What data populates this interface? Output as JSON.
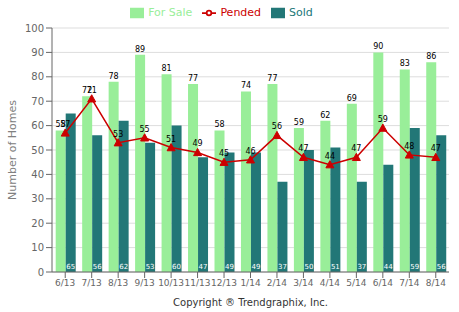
{
  "chart_data": {
    "type": "bar",
    "categories": [
      "6/13",
      "7/13",
      "8/13",
      "9/13",
      "10/13",
      "11/13",
      "12/13",
      "1/14",
      "2/14",
      "3/14",
      "4/14",
      "5/14",
      "6/14",
      "7/14",
      "8/14"
    ],
    "series": [
      {
        "name": "For Sale",
        "color": "#99ee99",
        "values": [
          58,
          72,
          78,
          89,
          81,
          77,
          58,
          74,
          77,
          59,
          62,
          69,
          90,
          83,
          86
        ]
      },
      {
        "name": "Sold",
        "color": "#227777",
        "values": [
          65,
          56,
          62,
          53,
          60,
          47,
          49,
          49,
          37,
          50,
          51,
          37,
          44,
          59,
          56
        ]
      },
      {
        "name": "Pended",
        "type": "line",
        "color": "#cc0000",
        "marker": "triangle",
        "values": [
          57,
          71,
          53,
          55,
          51,
          49,
          45,
          46,
          56,
          47,
          44,
          47,
          59,
          48,
          47
        ]
      }
    ],
    "xlabel": "Copyright ® Trendgraphix, Inc.",
    "ylabel": "Number of Homes",
    "ylim": [
      0,
      100
    ],
    "yticks": [
      0,
      10,
      20,
      30,
      40,
      50,
      60,
      70,
      80,
      90,
      100
    ],
    "grid": true,
    "legend": "top",
    "data_labels": true
  }
}
